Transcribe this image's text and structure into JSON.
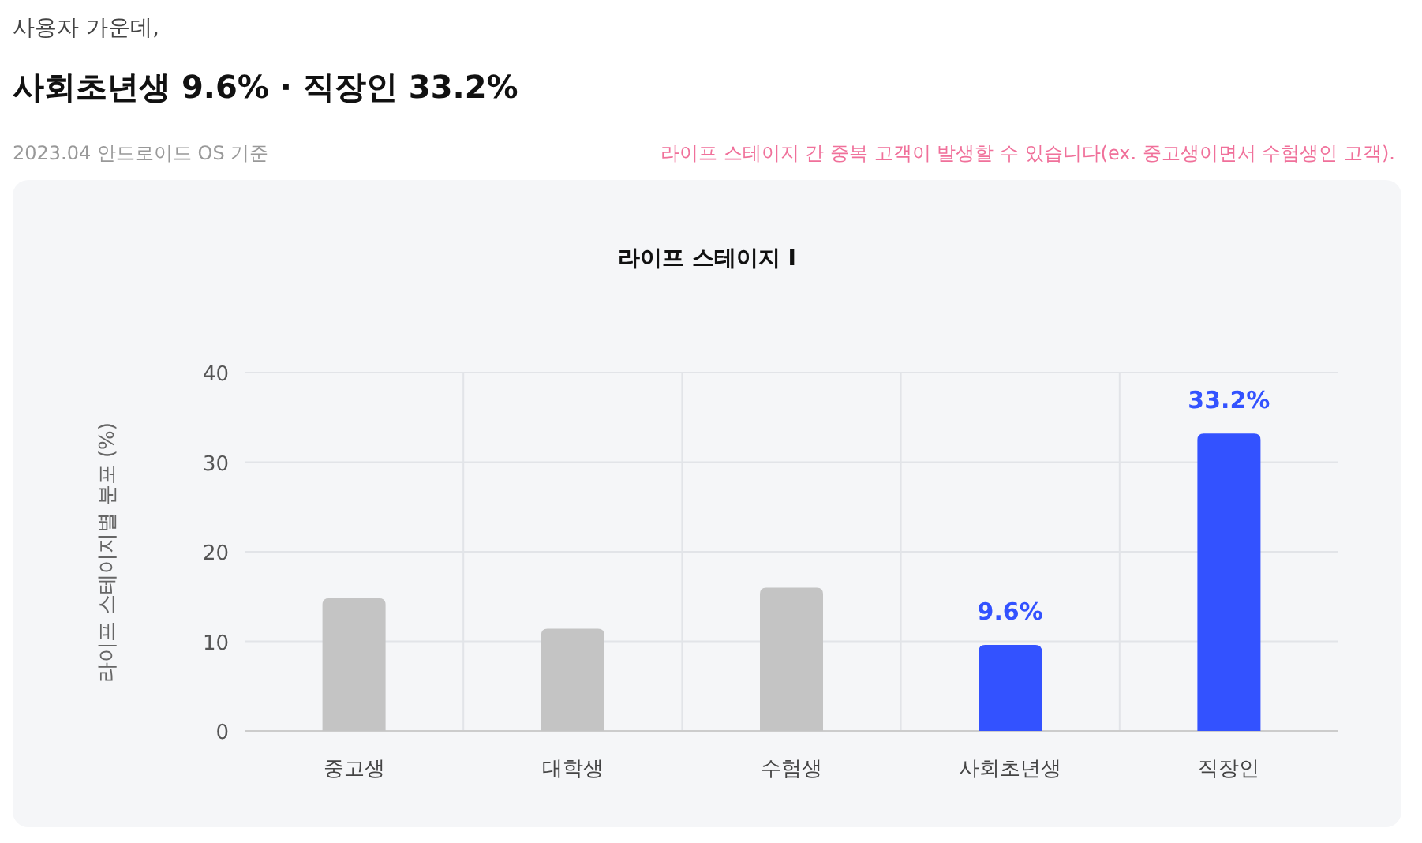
{
  "chart_data": {
    "type": "bar",
    "title": "라이프 스테이지 I",
    "ylabel": "라이프 스테이지별 분포 (%)",
    "annotations": [
      "사용자 가운데,",
      "사회초년생 9.6% · 직장인 33.2%",
      "2023.04 안드로이드 OS 기준",
      "라이프 스테이지 간 중복 고객이 발생할 수 있습니다(ex. 중고생이면서 수험생인 고객)."
    ],
    "categories": [
      "중고생",
      "대학생",
      "수험생",
      "사회초년생",
      "직장인"
    ],
    "values": [
      14.8,
      11.4,
      16.0,
      9.6,
      33.2
    ],
    "colors": [
      "#c4c4c4",
      "#c4c4c4",
      "#c4c4c4",
      "#3352ff",
      "#3352ff"
    ],
    "value_labels": [
      null,
      null,
      null,
      "9.6%",
      "33.2%"
    ],
    "ylim": [
      0,
      40
    ],
    "yticks": [
      0,
      10,
      20,
      30,
      40
    ],
    "grid": true
  }
}
